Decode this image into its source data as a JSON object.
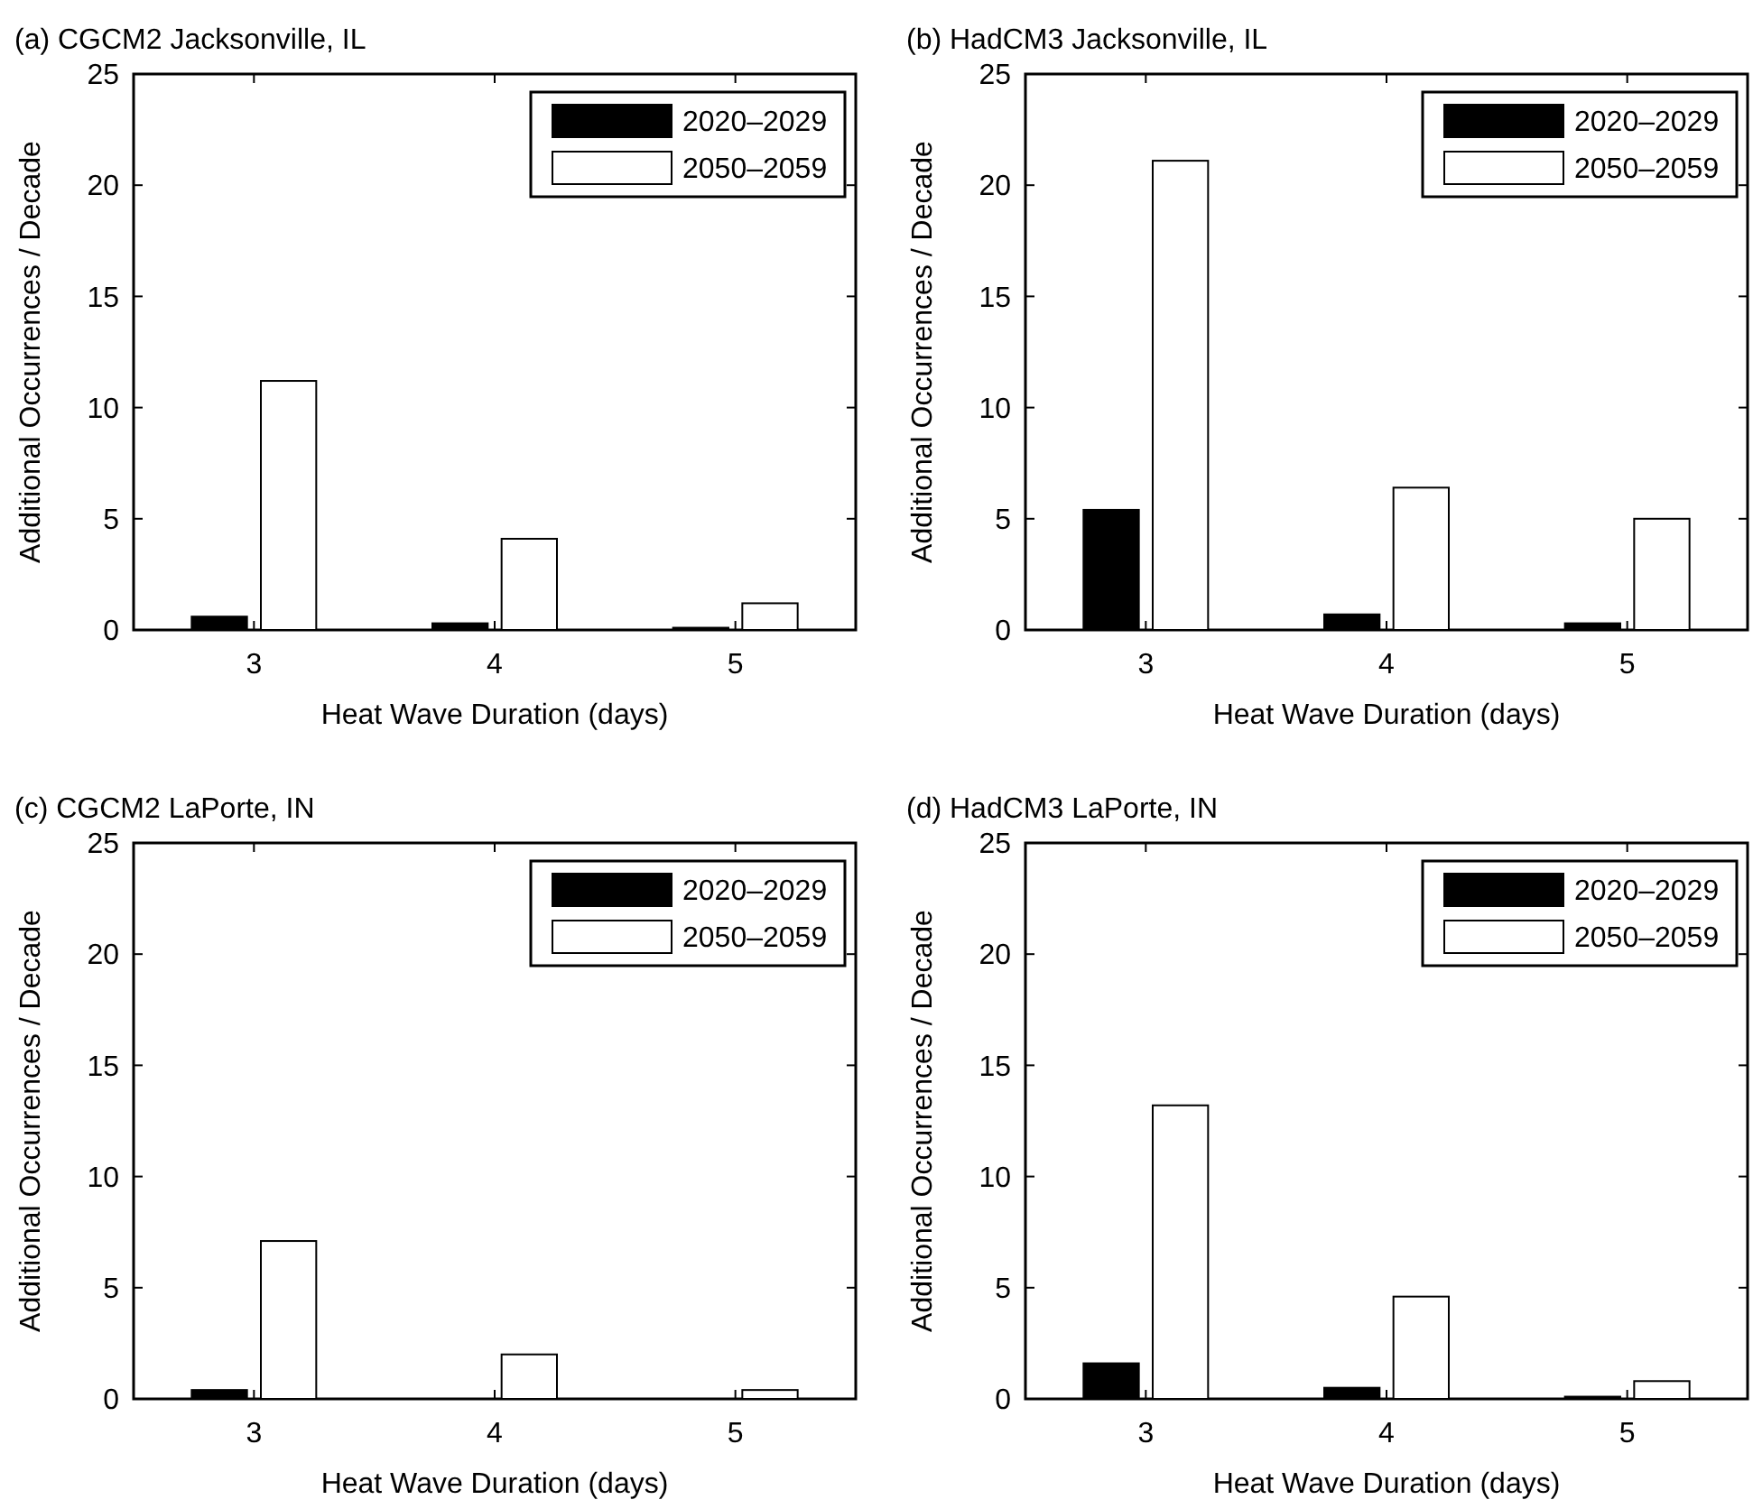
{
  "chart_data": [
    {
      "type": "bar",
      "title": "(a) CGCM2 Jacksonville, IL",
      "xlabel": "Heat Wave Duration (days)",
      "ylabel": "Additional Occurrences / Decade",
      "categories": [
        "3",
        "4",
        "5"
      ],
      "ylim": [
        0,
        25
      ],
      "yticks": [
        0,
        5,
        10,
        15,
        20,
        25
      ],
      "legend": "top right",
      "series": [
        {
          "name": "2020–2029",
          "color": "#000000",
          "values": [
            0.6,
            0.3,
            0.1
          ]
        },
        {
          "name": "2050–2059",
          "color": "#ffffff",
          "values": [
            11.2,
            4.1,
            1.2
          ]
        }
      ]
    },
    {
      "type": "bar",
      "title": "(b) HadCM3 Jacksonville, IL",
      "xlabel": "Heat Wave Duration (days)",
      "ylabel": "Additional Occurrences / Decade",
      "categories": [
        "3",
        "4",
        "5"
      ],
      "ylim": [
        0,
        25
      ],
      "yticks": [
        0,
        5,
        10,
        15,
        20,
        25
      ],
      "legend": "top right",
      "series": [
        {
          "name": "2020–2029",
          "color": "#000000",
          "values": [
            5.4,
            0.7,
            0.3
          ]
        },
        {
          "name": "2050–2059",
          "color": "#ffffff",
          "values": [
            21.1,
            6.4,
            5.0
          ]
        }
      ]
    },
    {
      "type": "bar",
      "title": "(c) CGCM2 LaPorte, IN",
      "xlabel": "Heat Wave Duration (days)",
      "ylabel": "Additional Occurrences / Decade",
      "categories": [
        "3",
        "4",
        "5"
      ],
      "ylim": [
        0,
        25
      ],
      "yticks": [
        0,
        5,
        10,
        15,
        20,
        25
      ],
      "legend": "top right",
      "series": [
        {
          "name": "2020–2029",
          "color": "#000000",
          "values": [
            0.4,
            0,
            0
          ]
        },
        {
          "name": "2050–2059",
          "color": "#ffffff",
          "values": [
            7.1,
            2.0,
            0.4
          ]
        }
      ]
    },
    {
      "type": "bar",
      "title": "(d) HadCM3 LaPorte, IN",
      "xlabel": "Heat Wave Duration (days)",
      "ylabel": "Additional Occurrences / Decade",
      "categories": [
        "3",
        "4",
        "5"
      ],
      "ylim": [
        0,
        25
      ],
      "yticks": [
        0,
        5,
        10,
        15,
        20,
        25
      ],
      "legend": "top right",
      "series": [
        {
          "name": "2020–2029",
          "color": "#000000",
          "values": [
            1.6,
            0.5,
            0.1
          ]
        },
        {
          "name": "2050–2059",
          "color": "#ffffff",
          "values": [
            13.2,
            4.6,
            0.8
          ]
        }
      ]
    }
  ]
}
